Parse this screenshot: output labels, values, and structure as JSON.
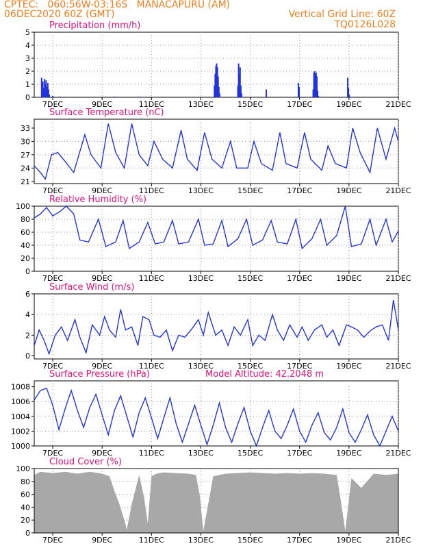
{
  "header": {
    "line1_left": "CPTEC:   060:56W-03:16S   MANACAPURU (AM)",
    "line2_left": "06DEC2020 60Z (GMT)",
    "line1_right": "Vertical Grid Line: 60Z",
    "line2_right": "TQ0126L028"
  },
  "colors": {
    "header": "#f07c1a",
    "title": "#e0147a",
    "series": "#2233dd",
    "cloud": "#a8a8a8",
    "grid": "#9a9a9a"
  },
  "x_axis": {
    "ticks": [
      "7DEC",
      "9DEC",
      "11DEC",
      "13DEC",
      "15DEC",
      "17DEC",
      "19DEC",
      "21DEC"
    ],
    "tick_days": [
      7,
      9,
      11,
      13,
      15,
      17,
      19,
      21
    ],
    "range_days": [
      6.25,
      21
    ]
  },
  "chart_data": [
    {
      "type": "bar",
      "title": "Precipitation (mm/h)",
      "ylim": [
        0,
        5
      ],
      "yticks": [
        0,
        1,
        2,
        3,
        4,
        5
      ],
      "x": [
        6.55,
        6.6,
        6.63,
        6.67,
        6.7,
        6.73,
        6.77,
        6.8,
        6.83,
        6.86,
        7.0,
        7.3,
        9.5,
        10.5,
        13.55,
        13.58,
        13.61,
        13.64,
        13.67,
        13.7,
        13.73,
        13.76,
        14.5,
        14.53,
        14.56,
        14.59,
        14.62,
        14.65,
        15.65,
        16.95,
        16.98,
        17.55,
        17.58,
        17.61,
        17.64,
        17.67,
        17.7,
        17.73,
        17.76,
        18.95,
        18.98,
        19.01
      ],
      "values": [
        1.5,
        1.2,
        0.7,
        1.4,
        1.0,
        1.3,
        0.8,
        1.1,
        0.6,
        0.2,
        0.1,
        0.05,
        0.05,
        0.05,
        0.9,
        1.8,
        2.4,
        2.6,
        2.3,
        1.6,
        0.8,
        0.3,
        0.9,
        2.6,
        1.8,
        2.3,
        0.9,
        0.3,
        0.6,
        1.1,
        0.8,
        0.6,
        1.9,
        2.0,
        1.7,
        1.9,
        1.6,
        0.5,
        0.1,
        1.5,
        0.7,
        0.2
      ]
    },
    {
      "type": "line",
      "title": "Surface Temperature (nC)",
      "ylim": [
        20.5,
        35
      ],
      "yticks": [
        21,
        24,
        27,
        30,
        33
      ],
      "x": [
        6.25,
        6.5,
        6.7,
        6.95,
        7.2,
        7.5,
        7.85,
        8.3,
        8.55,
        8.95,
        9.25,
        9.55,
        9.9,
        10.2,
        10.5,
        10.85,
        11.1,
        11.45,
        11.85,
        12.2,
        12.45,
        12.85,
        13.15,
        13.45,
        13.85,
        14.2,
        14.45,
        14.9,
        15.15,
        15.45,
        15.9,
        16.2,
        16.45,
        16.9,
        17.2,
        17.45,
        17.9,
        18.15,
        18.45,
        18.9,
        19.15,
        19.45,
        19.85,
        20.15,
        20.5,
        20.85,
        21
      ],
      "values": [
        24.5,
        23.0,
        21.5,
        27.0,
        27.5,
        25.5,
        23.0,
        31.5,
        27.0,
        24.0,
        34.0,
        27.5,
        24.0,
        34.0,
        27.0,
        24.5,
        30.0,
        26.0,
        24.0,
        32.5,
        26.0,
        23.5,
        32.0,
        26.0,
        24.0,
        30.0,
        24.0,
        24.0,
        30.0,
        25.0,
        23.5,
        32.0,
        25.0,
        24.0,
        32.0,
        26.0,
        23.5,
        29.0,
        25.0,
        24.0,
        33.0,
        27.5,
        23.0,
        33.0,
        26.0,
        33.0,
        30.0
      ]
    },
    {
      "type": "line",
      "title": "Relative Humidity (%)",
      "ylim": [
        0,
        100
      ],
      "yticks": [
        0,
        20,
        40,
        60,
        80,
        100
      ],
      "x": [
        6.25,
        6.5,
        6.75,
        7.0,
        7.3,
        7.55,
        7.85,
        8.1,
        8.45,
        8.85,
        9.15,
        9.55,
        9.85,
        10.1,
        10.5,
        10.85,
        11.15,
        11.5,
        11.85,
        12.1,
        12.5,
        12.9,
        13.15,
        13.5,
        13.85,
        14.1,
        14.5,
        14.85,
        15.1,
        15.5,
        15.85,
        16.1,
        16.5,
        16.85,
        17.1,
        17.5,
        17.85,
        18.1,
        18.5,
        18.85,
        19.1,
        19.5,
        19.85,
        20.1,
        20.5,
        20.75,
        21
      ],
      "values": [
        82,
        88,
        98,
        85,
        92,
        100,
        88,
        48,
        45,
        80,
        38,
        45,
        78,
        35,
        45,
        75,
        42,
        45,
        78,
        42,
        45,
        80,
        40,
        42,
        78,
        38,
        50,
        80,
        40,
        48,
        78,
        45,
        42,
        80,
        35,
        50,
        80,
        40,
        55,
        100,
        38,
        42,
        80,
        40,
        80,
        45,
        62
      ]
    },
    {
      "type": "line",
      "title": "Surface Wind (m/s)",
      "ylim": [
        -0.3,
        6
      ],
      "yticks": [
        0,
        2,
        4,
        6
      ],
      "x": [
        6.25,
        6.45,
        6.65,
        6.85,
        7.1,
        7.35,
        7.6,
        7.9,
        8.1,
        8.35,
        8.6,
        8.9,
        9.1,
        9.3,
        9.55,
        9.75,
        9.95,
        10.2,
        10.45,
        10.65,
        10.9,
        11.1,
        11.35,
        11.6,
        11.85,
        12.1,
        12.35,
        12.6,
        12.9,
        13.1,
        13.3,
        13.6,
        13.85,
        14.1,
        14.35,
        14.6,
        14.9,
        15.1,
        15.35,
        15.6,
        15.9,
        16.1,
        16.35,
        16.6,
        16.9,
        17.1,
        17.35,
        17.6,
        17.9,
        18.1,
        18.35,
        18.6,
        18.9,
        19.1,
        19.35,
        19.6,
        19.9,
        20.1,
        20.35,
        20.6,
        20.8,
        21
      ],
      "values": [
        1.0,
        2.5,
        1.5,
        0.2,
        2.0,
        2.8,
        1.5,
        3.5,
        1.8,
        0.3,
        3.0,
        2.0,
        3.8,
        2.5,
        1.8,
        4.5,
        2.5,
        2.8,
        1.0,
        3.8,
        3.5,
        2.0,
        1.8,
        2.5,
        0.5,
        2.0,
        1.8,
        2.5,
        3.5,
        2.0,
        4.2,
        2.0,
        2.5,
        1.0,
        2.8,
        2.0,
        3.5,
        1.0,
        2.0,
        1.5,
        4.0,
        2.5,
        1.5,
        3.0,
        1.8,
        2.8,
        1.5,
        2.5,
        3.0,
        1.8,
        2.5,
        1.0,
        3.0,
        2.8,
        2.5,
        1.8,
        2.5,
        2.8,
        3.0,
        1.5,
        5.4,
        2.5
      ]
    },
    {
      "type": "line",
      "title": "Surface Pressure (hPa)",
      "annotation": "Model Altitude: 42.2048 m",
      "ylim": [
        1000,
        1008.8
      ],
      "yticks": [
        1000,
        1002,
        1004,
        1006,
        1008
      ],
      "x": [
        6.25,
        6.5,
        6.75,
        7.0,
        7.25,
        7.5,
        7.75,
        8.0,
        8.25,
        8.5,
        8.75,
        9.0,
        9.25,
        9.5,
        9.75,
        10.0,
        10.25,
        10.5,
        10.75,
        11.0,
        11.25,
        11.5,
        11.75,
        12.0,
        12.25,
        12.5,
        12.75,
        13.0,
        13.25,
        13.5,
        13.75,
        14.0,
        14.25,
        14.5,
        14.75,
        15.0,
        15.25,
        15.5,
        15.75,
        16.0,
        16.25,
        16.5,
        16.75,
        17.0,
        17.25,
        17.5,
        17.75,
        18.0,
        18.25,
        18.5,
        18.75,
        19.0,
        19.25,
        19.5,
        19.75,
        20.0,
        20.25,
        20.5,
        20.75,
        21.0
      ],
      "values": [
        1006.2,
        1007.5,
        1007.8,
        1005.5,
        1002.2,
        1005.0,
        1007.5,
        1004.8,
        1002.5,
        1005.2,
        1007.0,
        1004.2,
        1001.5,
        1004.8,
        1006.8,
        1004.0,
        1001.2,
        1004.5,
        1006.5,
        1003.8,
        1001.0,
        1003.8,
        1006.5,
        1003.0,
        1000.5,
        1003.0,
        1005.5,
        1002.8,
        1000.2,
        1002.8,
        1005.8,
        1002.5,
        1000.5,
        1003.0,
        1005.2,
        1002.0,
        1000.0,
        1002.5,
        1004.8,
        1002.0,
        1001.0,
        1002.8,
        1005.0,
        1002.0,
        1000.5,
        1002.8,
        1004.5,
        1001.8,
        1000.8,
        1002.5,
        1005.0,
        1001.8,
        1000.5,
        1002.2,
        1004.2,
        1001.5,
        1000.0,
        1002.0,
        1004.0,
        1002.0
      ]
    },
    {
      "type": "area",
      "title": "Cloud Cover (%)",
      "ylim": [
        0,
        100
      ],
      "yticks": [
        0,
        20,
        40,
        60,
        80,
        100
      ],
      "x": [
        6.25,
        6.5,
        7.0,
        7.5,
        8.0,
        8.5,
        9.0,
        9.3,
        9.5,
        9.7,
        9.9,
        10.0,
        10.2,
        10.5,
        10.7,
        10.85,
        11.0,
        11.2,
        11.5,
        12.0,
        12.5,
        12.8,
        12.95,
        13.1,
        13.5,
        14.0,
        14.5,
        15.0,
        15.5,
        16.0,
        16.5,
        17.0,
        17.5,
        18.0,
        18.5,
        18.65,
        18.85,
        19.1,
        19.5,
        20.0,
        20.5,
        21.0
      ],
      "values": [
        90,
        95,
        93,
        95,
        92,
        95,
        92,
        88,
        65,
        45,
        20,
        5,
        45,
        90,
        55,
        15,
        88,
        92,
        94,
        93,
        92,
        90,
        60,
        3,
        88,
        92,
        93,
        94,
        93,
        92,
        93,
        92,
        93,
        92,
        90,
        55,
        3,
        85,
        70,
        92,
        90,
        92
      ]
    }
  ]
}
